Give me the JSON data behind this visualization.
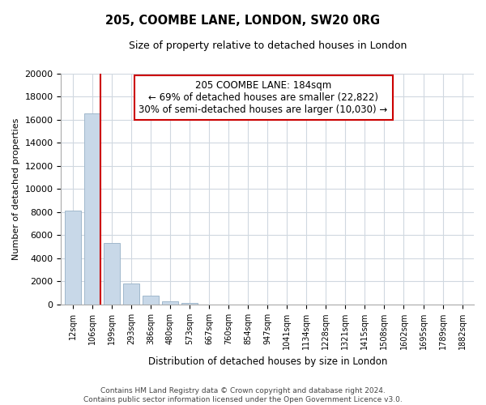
{
  "title": "205, COOMBE LANE, LONDON, SW20 0RG",
  "subtitle": "Size of property relative to detached houses in London",
  "xlabel": "Distribution of detached houses by size in London",
  "ylabel": "Number of detached properties",
  "bar_labels": [
    "12sqm",
    "106sqm",
    "199sqm",
    "293sqm",
    "386sqm",
    "480sqm",
    "573sqm",
    "667sqm",
    "760sqm",
    "854sqm",
    "947sqm",
    "1041sqm",
    "1134sqm",
    "1228sqm",
    "1321sqm",
    "1415sqm",
    "1508sqm",
    "1602sqm",
    "1695sqm",
    "1789sqm",
    "1882sqm"
  ],
  "bar_values": [
    8100,
    16500,
    5300,
    1800,
    750,
    300,
    170,
    0,
    0,
    0,
    0,
    0,
    0,
    0,
    0,
    0,
    0,
    0,
    0,
    0,
    0
  ],
  "bar_color": "#c8d8e8",
  "bar_edge_color": "#a0b8cc",
  "marker_bin": 1,
  "marker_color": "#cc0000",
  "annotation_title": "205 COOMBE LANE: 184sqm",
  "annotation_line1": "← 69% of detached houses are smaller (22,822)",
  "annotation_line2": "30% of semi-detached houses are larger (10,030) →",
  "ylim": [
    0,
    20000
  ],
  "yticks": [
    0,
    2000,
    4000,
    6000,
    8000,
    10000,
    12000,
    14000,
    16000,
    18000,
    20000
  ],
  "footer_line1": "Contains HM Land Registry data © Crown copyright and database right 2024.",
  "footer_line2": "Contains public sector information licensed under the Open Government Licence v3.0.",
  "background_color": "#ffffff",
  "grid_color": "#d0d8e0"
}
